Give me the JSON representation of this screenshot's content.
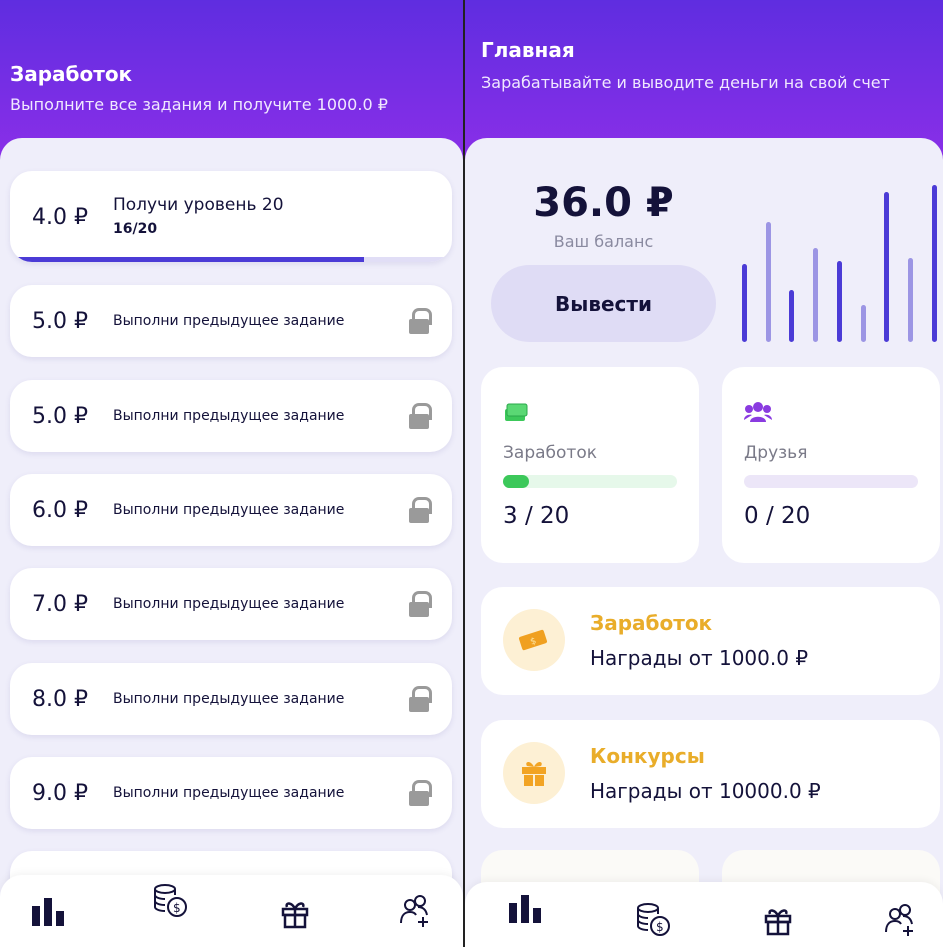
{
  "left": {
    "header": {
      "title": "Заработок",
      "subtitle": "Выполните все задания и получите 1000.0 ₽"
    },
    "current_task": {
      "amount": "4.0 ₽",
      "title": "Получи уровень 20",
      "progress_text": "16/20",
      "progress": 0.8
    },
    "locked_tasks": [
      {
        "amount": "5.0 ₽",
        "label": "Выполни предыдущее задание"
      },
      {
        "amount": "5.0 ₽",
        "label": "Выполни предыдущее задание"
      },
      {
        "amount": "6.0 ₽",
        "label": "Выполни предыдущее задание"
      },
      {
        "amount": "7.0 ₽",
        "label": "Выполни предыдущее задание"
      },
      {
        "amount": "8.0 ₽",
        "label": "Выполни предыдущее задание"
      },
      {
        "amount": "9.0 ₽",
        "label": "Выполни предыдущее задание"
      }
    ]
  },
  "right": {
    "header": {
      "title": "Главная",
      "subtitle": "Зарабатывайте и выводите деньги на свой счет"
    },
    "balance": {
      "value": "36.0 ₽",
      "label": "Ваш баланс",
      "withdraw_label": "Вывести"
    },
    "chart_levels": [
      0.52,
      0.8,
      0.35,
      0.63,
      0.54,
      0.25,
      1.0,
      0.56,
      1.05
    ],
    "stats": [
      {
        "label": "Заработок",
        "value": "3 / 20",
        "progress": 0.15,
        "color": "#3cc85a",
        "icon": "money-stack-icon"
      },
      {
        "label": "Друзья",
        "value": "0 / 20",
        "progress": 0,
        "color": "#8a3be0",
        "icon": "users-icon"
      }
    ],
    "rewards": [
      {
        "title": "Заработок",
        "subtitle": "Награды от 1000.0 ₽",
        "icon": "cash-icon"
      },
      {
        "title": "Конкурсы",
        "subtitle": "Награды от 10000.0 ₽",
        "icon": "gift-icon"
      }
    ]
  },
  "colors": {
    "accent": "#4b3bd6",
    "header": "#6a2fe4",
    "reward": "#e9ad2a",
    "background": "#efeefa"
  },
  "nav_icons": [
    "bar-chart-icon",
    "coins-icon",
    "gift-icon",
    "add-friend-icon"
  ]
}
